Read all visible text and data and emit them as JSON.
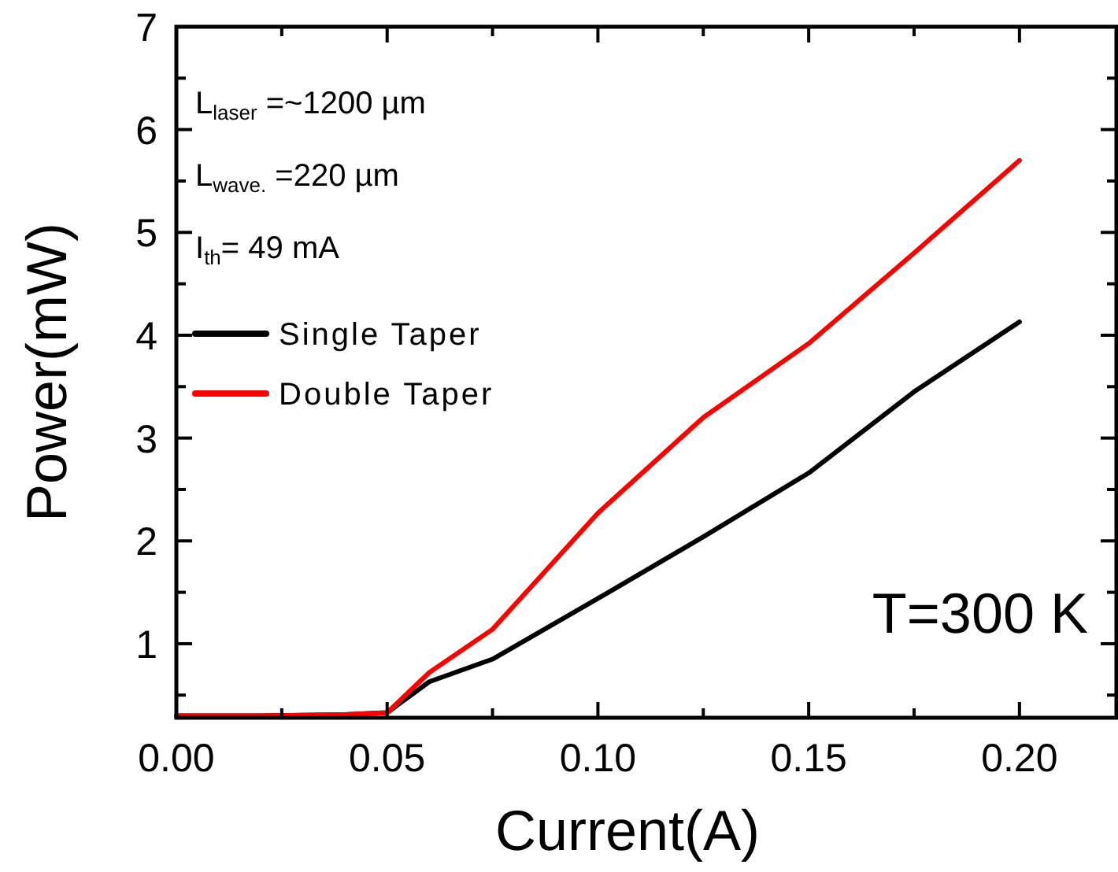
{
  "chart_data": {
    "type": "line",
    "xlabel": "Current(A)",
    "ylabel": "Power(mW)",
    "xlim": [
      0,
      0.223
    ],
    "ylim": [
      0.28,
      7
    ],
    "xticks": [
      {
        "value": 0,
        "label": "0.00"
      },
      {
        "value": 0.025,
        "label": null
      },
      {
        "value": 0.05,
        "label": "0.05"
      },
      {
        "value": 0.075,
        "label": null
      },
      {
        "value": 0.1,
        "label": "0.10"
      },
      {
        "value": 0.125,
        "label": null
      },
      {
        "value": 0.15,
        "label": "0.15"
      },
      {
        "value": 0.175,
        "label": null
      },
      {
        "value": 0.2,
        "label": "0.20"
      }
    ],
    "yticks": [
      {
        "value": 0.5,
        "label": null
      },
      1,
      {
        "value": 1.5,
        "label": null
      },
      2,
      {
        "value": 2.5,
        "label": null
      },
      3,
      {
        "value": 3.5,
        "label": null
      },
      4,
      {
        "value": 4.5,
        "label": null
      },
      5,
      {
        "value": 5.5,
        "label": null
      },
      6,
      {
        "value": 6.5,
        "label": null
      },
      7
    ],
    "x": [
      0,
      0.02,
      0.04,
      0.05,
      0.06,
      0.075,
      0.1,
      0.125,
      0.15,
      0.175,
      0.2
    ],
    "series": [
      {
        "name": "Single Taper",
        "color": "#000000",
        "values": [
          0.3,
          0.3,
          0.31,
          0.33,
          0.63,
          0.85,
          1.44,
          2.04,
          2.66,
          3.45,
          4.13
        ]
      },
      {
        "name": "Double Taper",
        "color": "#ff0000",
        "values": [
          0.3,
          0.3,
          0.31,
          0.33,
          0.72,
          1.14,
          2.27,
          3.2,
          3.92,
          4.8,
          5.7
        ]
      }
    ],
    "annotations": [
      "L$_{laser}$ =~1200 µm",
      "L$_{wave.}$ =220 µm",
      "I$_{th}$= 49 mA",
      "T=300 K"
    ],
    "legend": "top left",
    "grid": false,
    "marker": "none",
    "line_style": "solid"
  }
}
